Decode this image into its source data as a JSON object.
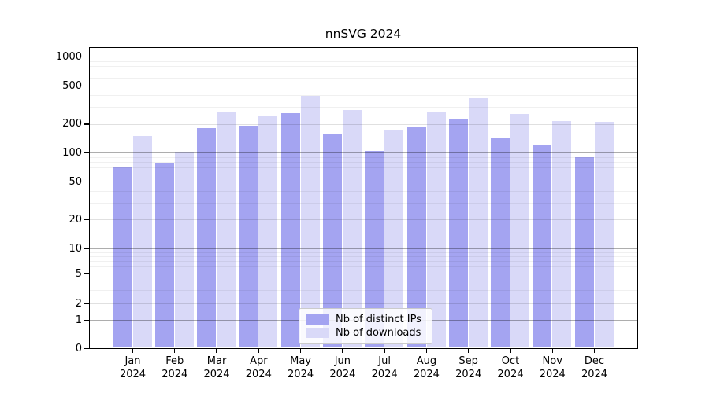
{
  "title": "nnSVG 2024",
  "chart_data": {
    "type": "bar",
    "title": "nnSVG 2024",
    "yscale": "symlog",
    "grid": true,
    "legend_position": "lower center",
    "ylim": [
      0,
      1300
    ],
    "yticks": [
      0,
      1,
      2,
      5,
      10,
      20,
      50,
      100,
      200,
      500,
      1000
    ],
    "minor_gridlines": [
      3,
      4,
      6,
      7,
      8,
      9,
      30,
      40,
      60,
      70,
      80,
      90,
      300,
      400,
      600,
      700,
      800,
      900
    ],
    "categories": [
      "Jan 2024",
      "Feb 2024",
      "Mar 2024",
      "Apr 2024",
      "May 2024",
      "Jun 2024",
      "Jul 2024",
      "Aug 2024",
      "Sep 2024",
      "Oct 2024",
      "Nov 2024",
      "Dec 2024"
    ],
    "series": [
      {
        "name": "Nb of distinct IPs",
        "color": "#a4a4f1",
        "values": [
          70,
          78,
          180,
          191,
          257,
          154,
          104,
          184,
          220,
          144,
          121,
          89
        ]
      },
      {
        "name": "Nb of downloads",
        "color": "#d9d9f8",
        "values": [
          150,
          100,
          268,
          245,
          390,
          281,
          175,
          263,
          372,
          255,
          214,
          211
        ]
      }
    ],
    "colors": {
      "major_gridline": "rgba(0,0,0,0.32)",
      "mid_gridline": "rgba(0,0,0,0.12)",
      "minor_gridline": "rgba(0,0,0,0.06)",
      "spine": "#000000",
      "background": "#ffffff"
    }
  },
  "legend": {
    "items": [
      {
        "label": "Nb of distinct IPs",
        "color": "#a4a4f1"
      },
      {
        "label": "Nb of downloads",
        "color": "#d9d9f8"
      }
    ]
  }
}
